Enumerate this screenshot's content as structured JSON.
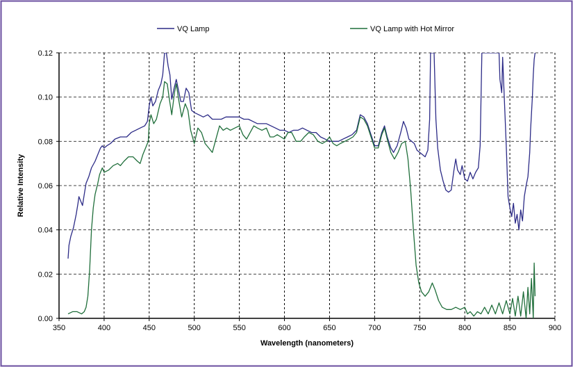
{
  "chart_data": {
    "type": "line",
    "title": "",
    "xlabel": "Wavelength (nanometers)",
    "ylabel": "Relative Intensity",
    "xlim": [
      350,
      900
    ],
    "ylim": [
      0,
      0.12
    ],
    "xticks": [
      "350",
      "400",
      "450",
      "500",
      "550",
      "600",
      "650",
      "700",
      "750",
      "800",
      "850",
      "900"
    ],
    "yticks": [
      "0.00",
      "0.02",
      "0.04",
      "0.06",
      "0.08",
      "0.10",
      "0.12"
    ],
    "grid": true,
    "legend_position": "top",
    "border_color": "#6b4fa0",
    "series": [
      {
        "name": "VQ Lamp",
        "color": "#2b2a86",
        "points": [
          [
            360,
            0.027
          ],
          [
            361,
            0.033
          ],
          [
            363,
            0.037
          ],
          [
            366,
            0.041
          ],
          [
            369,
            0.047
          ],
          [
            371,
            0.052
          ],
          [
            372,
            0.055
          ],
          [
            374,
            0.053
          ],
          [
            376,
            0.051
          ],
          [
            378,
            0.056
          ],
          [
            380,
            0.061
          ],
          [
            383,
            0.064
          ],
          [
            386,
            0.068
          ],
          [
            390,
            0.071
          ],
          [
            393,
            0.074
          ],
          [
            396,
            0.077
          ],
          [
            398,
            0.078
          ],
          [
            400,
            0.077
          ],
          [
            403,
            0.078
          ],
          [
            407,
            0.079
          ],
          [
            412,
            0.081
          ],
          [
            418,
            0.082
          ],
          [
            425,
            0.082
          ],
          [
            430,
            0.084
          ],
          [
            435,
            0.085
          ],
          [
            440,
            0.086
          ],
          [
            445,
            0.087
          ],
          [
            448,
            0.089
          ],
          [
            450,
            0.096
          ],
          [
            452,
            0.1
          ],
          [
            454,
            0.096
          ],
          [
            457,
            0.098
          ],
          [
            460,
            0.103
          ],
          [
            463,
            0.106
          ],
          [
            465,
            0.11
          ],
          [
            467,
            0.12
          ],
          [
            469,
            0.12
          ],
          [
            471,
            0.114
          ],
          [
            473,
            0.11
          ],
          [
            475,
            0.099
          ],
          [
            477,
            0.103
          ],
          [
            480,
            0.108
          ],
          [
            482,
            0.104
          ],
          [
            485,
            0.098
          ],
          [
            488,
            0.098
          ],
          [
            491,
            0.104
          ],
          [
            494,
            0.102
          ],
          [
            497,
            0.094
          ],
          [
            500,
            0.093
          ],
          [
            505,
            0.092
          ],
          [
            510,
            0.091
          ],
          [
            515,
            0.092
          ],
          [
            520,
            0.09
          ],
          [
            525,
            0.09
          ],
          [
            530,
            0.09
          ],
          [
            535,
            0.091
          ],
          [
            540,
            0.091
          ],
          [
            545,
            0.091
          ],
          [
            550,
            0.091
          ],
          [
            555,
            0.09
          ],
          [
            560,
            0.09
          ],
          [
            565,
            0.089
          ],
          [
            570,
            0.088
          ],
          [
            575,
            0.088
          ],
          [
            580,
            0.088
          ],
          [
            585,
            0.087
          ],
          [
            590,
            0.086
          ],
          [
            595,
            0.085
          ],
          [
            600,
            0.085
          ],
          [
            605,
            0.084
          ],
          [
            610,
            0.085
          ],
          [
            615,
            0.085
          ],
          [
            620,
            0.086
          ],
          [
            625,
            0.085
          ],
          [
            630,
            0.084
          ],
          [
            635,
            0.084
          ],
          [
            640,
            0.082
          ],
          [
            645,
            0.081
          ],
          [
            650,
            0.08
          ],
          [
            655,
            0.08
          ],
          [
            660,
            0.08
          ],
          [
            665,
            0.081
          ],
          [
            670,
            0.082
          ],
          [
            675,
            0.083
          ],
          [
            680,
            0.085
          ],
          [
            684,
            0.092
          ],
          [
            688,
            0.091
          ],
          [
            692,
            0.088
          ],
          [
            696,
            0.083
          ],
          [
            700,
            0.078
          ],
          [
            704,
            0.078
          ],
          [
            708,
            0.084
          ],
          [
            711,
            0.087
          ],
          [
            714,
            0.082
          ],
          [
            718,
            0.077
          ],
          [
            721,
            0.075
          ],
          [
            725,
            0.078
          ],
          [
            729,
            0.084
          ],
          [
            732,
            0.089
          ],
          [
            735,
            0.086
          ],
          [
            738,
            0.081
          ],
          [
            741,
            0.08
          ],
          [
            744,
            0.079
          ],
          [
            747,
            0.076
          ],
          [
            750,
            0.075
          ],
          [
            753,
            0.074
          ],
          [
            756,
            0.073
          ],
          [
            759,
            0.076
          ],
          [
            761,
            0.09
          ],
          [
            762,
            0.12
          ],
          [
            766,
            0.12
          ],
          [
            768,
            0.09
          ],
          [
            770,
            0.077
          ],
          [
            773,
            0.067
          ],
          [
            776,
            0.062
          ],
          [
            779,
            0.058
          ],
          [
            782,
            0.057
          ],
          [
            785,
            0.058
          ],
          [
            788,
            0.067
          ],
          [
            790,
            0.072
          ],
          [
            792,
            0.067
          ],
          [
            795,
            0.065
          ],
          [
            797,
            0.069
          ],
          [
            800,
            0.063
          ],
          [
            803,
            0.062
          ],
          [
            806,
            0.066
          ],
          [
            809,
            0.063
          ],
          [
            812,
            0.066
          ],
          [
            815,
            0.068
          ],
          [
            817,
            0.078
          ],
          [
            819,
            0.12
          ],
          [
            838,
            0.12
          ],
          [
            839,
            0.108
          ],
          [
            841,
            0.102
          ],
          [
            842,
            0.118
          ],
          [
            844,
            0.098
          ],
          [
            846,
            0.078
          ],
          [
            848,
            0.055
          ],
          [
            850,
            0.05
          ],
          [
            852,
            0.046
          ],
          [
            854,
            0.052
          ],
          [
            856,
            0.043
          ],
          [
            858,
            0.047
          ],
          [
            860,
            0.04
          ],
          [
            862,
            0.049
          ],
          [
            864,
            0.044
          ],
          [
            866,
            0.055
          ],
          [
            868,
            0.06
          ],
          [
            870,
            0.064
          ],
          [
            872,
            0.075
          ],
          [
            873,
            0.085
          ],
          [
            875,
            0.1
          ],
          [
            876,
            0.11
          ],
          [
            877,
            0.117
          ],
          [
            878,
            0.12
          ]
        ]
      },
      {
        "name": "VQ Lamp with Hot Mirror",
        "color": "#1f6e3a",
        "points": [
          [
            360,
            0.002
          ],
          [
            365,
            0.003
          ],
          [
            370,
            0.003
          ],
          [
            375,
            0.002
          ],
          [
            378,
            0.003
          ],
          [
            380,
            0.005
          ],
          [
            382,
            0.01
          ],
          [
            384,
            0.022
          ],
          [
            386,
            0.04
          ],
          [
            388,
            0.05
          ],
          [
            390,
            0.056
          ],
          [
            393,
            0.061
          ],
          [
            395,
            0.065
          ],
          [
            398,
            0.068
          ],
          [
            400,
            0.066
          ],
          [
            405,
            0.067
          ],
          [
            410,
            0.069
          ],
          [
            415,
            0.07
          ],
          [
            418,
            0.069
          ],
          [
            422,
            0.071
          ],
          [
            427,
            0.073
          ],
          [
            432,
            0.073
          ],
          [
            437,
            0.071
          ],
          [
            440,
            0.07
          ],
          [
            443,
            0.074
          ],
          [
            447,
            0.078
          ],
          [
            449,
            0.08
          ],
          [
            450,
            0.088
          ],
          [
            452,
            0.092
          ],
          [
            455,
            0.088
          ],
          [
            458,
            0.09
          ],
          [
            462,
            0.097
          ],
          [
            465,
            0.1
          ],
          [
            467,
            0.107
          ],
          [
            470,
            0.106
          ],
          [
            472,
            0.1
          ],
          [
            475,
            0.092
          ],
          [
            478,
            0.102
          ],
          [
            480,
            0.106
          ],
          [
            483,
            0.098
          ],
          [
            486,
            0.091
          ],
          [
            490,
            0.097
          ],
          [
            493,
            0.094
          ],
          [
            496,
            0.085
          ],
          [
            500,
            0.079
          ],
          [
            504,
            0.086
          ],
          [
            508,
            0.084
          ],
          [
            512,
            0.079
          ],
          [
            516,
            0.077
          ],
          [
            520,
            0.075
          ],
          [
            524,
            0.081
          ],
          [
            528,
            0.087
          ],
          [
            532,
            0.085
          ],
          [
            536,
            0.086
          ],
          [
            540,
            0.085
          ],
          [
            545,
            0.086
          ],
          [
            550,
            0.087
          ],
          [
            554,
            0.083
          ],
          [
            558,
            0.081
          ],
          [
            562,
            0.084
          ],
          [
            566,
            0.087
          ],
          [
            570,
            0.086
          ],
          [
            575,
            0.085
          ],
          [
            580,
            0.086
          ],
          [
            584,
            0.082
          ],
          [
            588,
            0.082
          ],
          [
            592,
            0.083
          ],
          [
            596,
            0.082
          ],
          [
            600,
            0.081
          ],
          [
            604,
            0.084
          ],
          [
            608,
            0.084
          ],
          [
            613,
            0.08
          ],
          [
            618,
            0.08
          ],
          [
            622,
            0.082
          ],
          [
            627,
            0.084
          ],
          [
            632,
            0.083
          ],
          [
            637,
            0.08
          ],
          [
            642,
            0.079
          ],
          [
            646,
            0.08
          ],
          [
            650,
            0.082
          ],
          [
            654,
            0.079
          ],
          [
            658,
            0.078
          ],
          [
            662,
            0.079
          ],
          [
            667,
            0.08
          ],
          [
            672,
            0.081
          ],
          [
            676,
            0.082
          ],
          [
            680,
            0.084
          ],
          [
            684,
            0.091
          ],
          [
            688,
            0.09
          ],
          [
            692,
            0.087
          ],
          [
            696,
            0.082
          ],
          [
            700,
            0.077
          ],
          [
            704,
            0.077
          ],
          [
            708,
            0.083
          ],
          [
            711,
            0.086
          ],
          [
            714,
            0.081
          ],
          [
            718,
            0.075
          ],
          [
            722,
            0.072
          ],
          [
            726,
            0.075
          ],
          [
            730,
            0.079
          ],
          [
            734,
            0.08
          ],
          [
            737,
            0.072
          ],
          [
            740,
            0.058
          ],
          [
            743,
            0.04
          ],
          [
            746,
            0.024
          ],
          [
            749,
            0.016
          ],
          [
            752,
            0.012
          ],
          [
            756,
            0.01
          ],
          [
            760,
            0.012
          ],
          [
            764,
            0.016
          ],
          [
            767,
            0.013
          ],
          [
            771,
            0.008
          ],
          [
            775,
            0.005
          ],
          [
            780,
            0.004
          ],
          [
            785,
            0.004
          ],
          [
            790,
            0.005
          ],
          [
            795,
            0.004
          ],
          [
            800,
            0.005
          ],
          [
            803,
            0.002
          ],
          [
            806,
            0.003
          ],
          [
            810,
            0.001
          ],
          [
            814,
            0.003
          ],
          [
            818,
            0.002
          ],
          [
            822,
            0.005
          ],
          [
            826,
            0.002
          ],
          [
            830,
            0.006
          ],
          [
            834,
            0.002
          ],
          [
            838,
            0.007
          ],
          [
            842,
            0.002
          ],
          [
            846,
            0.008
          ],
          [
            850,
            0.002
          ],
          [
            853,
            0.009
          ],
          [
            856,
            0.001
          ],
          [
            859,
            0.01
          ],
          [
            862,
            0.001
          ],
          [
            865,
            0.012
          ],
          [
            868,
            0.0
          ],
          [
            870,
            0.014
          ],
          [
            872,
            0.002
          ],
          [
            874,
            0.018
          ],
          [
            876,
            0.0
          ],
          [
            877,
            0.025
          ],
          [
            878,
            0.01
          ]
        ]
      }
    ]
  }
}
